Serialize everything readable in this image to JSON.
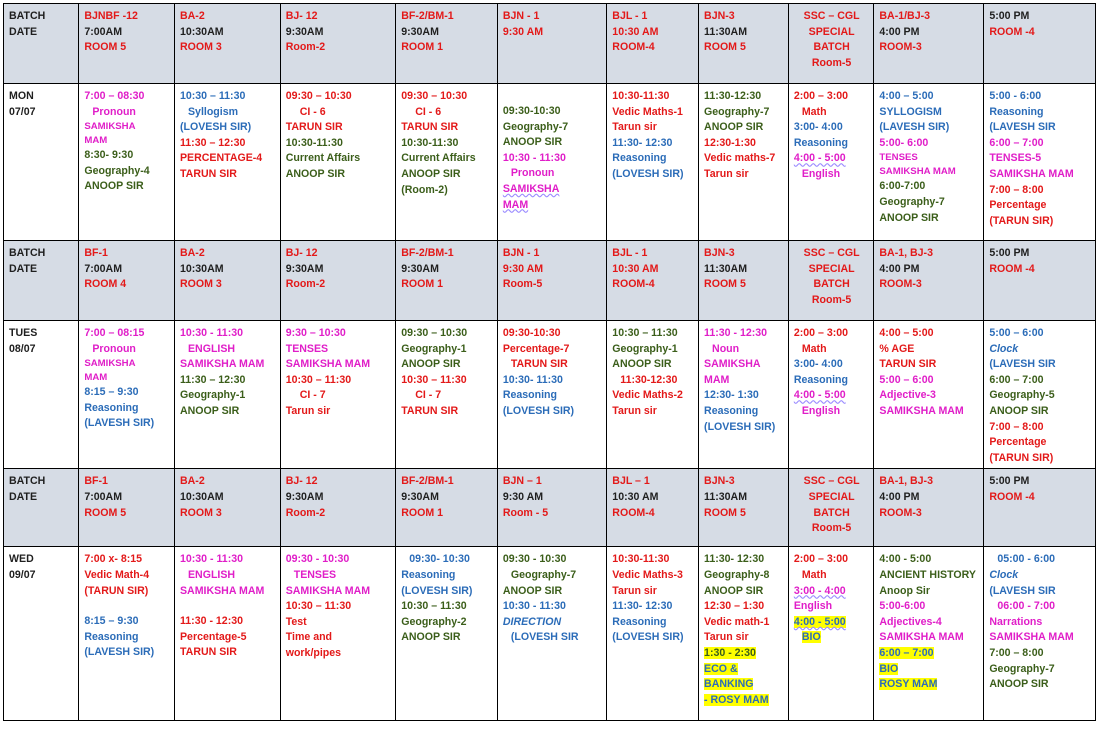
{
  "labels": {
    "batch": "BATCH",
    "date": "DATE",
    "mon": "MON",
    "mon_date": "07/07",
    "tues": "TUES",
    "tues_date": "08/07",
    "wed": "WED",
    "wed_date": "09/07"
  },
  "h1": {
    "c1": [
      "BJNBF -12",
      "7:00AM",
      "ROOM 5"
    ],
    "c2": [
      "BA-2",
      "10:30AM",
      "ROOM 3"
    ],
    "c3": [
      "BJ- 12",
      "9:30AM",
      "Room-2"
    ],
    "c4": [
      "BF-2/BM-1",
      "9:30AM",
      "ROOM 1"
    ],
    "c5": [
      "BJN - 1",
      "9:30 AM"
    ],
    "c6": [
      "BJL - 1",
      "10:30 AM",
      "ROOM-4"
    ],
    "c7": [
      "BJN-3",
      "11:30AM",
      "ROOM 5"
    ],
    "c8": [
      "SSC – CGL",
      "SPECIAL",
      "BATCH",
      "Room-5"
    ],
    "c9": [
      "BA-1/BJ-3",
      "4:00 PM",
      "ROOM-3"
    ],
    "c10": [
      "5:00 PM",
      "ROOM -4"
    ]
  },
  "mon": {
    "c1": [
      "7:00 – 08:30",
      "Pronoun",
      "SAMIKSHA",
      "MAM",
      "8:30- 9:30",
      "Geography-4",
      "ANOOP SIR"
    ],
    "c2": [
      "10:30 – 11:30",
      "Syllogism",
      "(LOVESH SIR)",
      "11:30 – 12:30",
      "PERCENTAGE-4",
      "TARUN SIR"
    ],
    "c3": [
      "09:30 – 10:30",
      "CI - 6",
      "TARUN SIR",
      "10:30-11:30",
      "Current Affairs",
      "ANOOP SIR"
    ],
    "c4": [
      "09:30 – 10:30",
      "CI - 6",
      "TARUN SIR",
      "10:30-11:30",
      "Current Affairs",
      "ANOOP SIR",
      "(Room-2)"
    ],
    "c5": [
      "09:30-10:30",
      "Geography-7",
      "ANOOP SIR",
      "10:30 - 11:30",
      "Pronoun",
      "SAMIKSHA",
      "MAM"
    ],
    "c6": [
      "10:30-11:30",
      "Vedic Maths-1",
      "Tarun sir",
      "11:30- 12:30",
      "Reasoning",
      "(LOVESH SIR)"
    ],
    "c7": [
      "11:30-12:30",
      "Geography-7",
      "ANOOP SIR",
      "12:30-1:30",
      "Vedic maths-7",
      "Tarun sir"
    ],
    "c8": [
      "2:00 – 3:00",
      "Math",
      "3:00- 4:00",
      "Reasoning",
      "4:00 - 5:00",
      "English"
    ],
    "c9": [
      "4:00 – 5:00",
      "SYLLOGISM",
      "(LAVESH SIR)",
      "5:00- 6:00",
      "TENSES",
      "SAMIKSHA MAM",
      "6:00-7:00",
      "Geography-7",
      "ANOOP SIR"
    ],
    "c10": [
      "5:00 - 6:00",
      "Reasoning",
      "(LAVESH SIR",
      "6:00 – 7:00",
      "TENSES-5",
      "SAMIKSHA MAM",
      "7:00 – 8:00",
      "Percentage",
      "(TARUN SIR)"
    ]
  },
  "h2": {
    "c1": [
      "BF-1",
      "7:00AM",
      "ROOM 4"
    ],
    "c2": [
      "BA-2",
      "10:30AM",
      "ROOM 3"
    ],
    "c3": [
      "BJ- 12",
      "9:30AM",
      "Room-2"
    ],
    "c4": [
      "BF-2/BM-1",
      "9:30AM",
      "ROOM 1"
    ],
    "c5": [
      "BJN - 1",
      "9:30 AM",
      "Room-5"
    ],
    "c6": [
      "BJL - 1",
      "10:30 AM",
      "ROOM-4"
    ],
    "c7": [
      "BJN-3",
      "11:30AM",
      "ROOM 5"
    ],
    "c8": [
      "SSC – CGL",
      "SPECIAL",
      "BATCH",
      "Room-5"
    ],
    "c9": [
      "BA-1, BJ-3",
      "4:00 PM",
      "ROOM-3"
    ],
    "c10": [
      "5:00 PM",
      "ROOM -4"
    ]
  },
  "tues": {
    "c1": [
      "7:00 – 08:15",
      "Pronoun",
      "SAMIKSHA",
      "MAM",
      "8:15 – 9:30",
      "Reasoning",
      "(LAVESH SIR)"
    ],
    "c2": [
      "10:30 - 11:30",
      "ENGLISH",
      "SAMIKSHA MAM",
      "11:30 – 12:30",
      "Geography-1",
      "ANOOP SIR"
    ],
    "c3": [
      "9:30 – 10:30",
      "TENSES",
      "SAMIKSHA MAM",
      "10:30 – 11:30",
      "CI - 7",
      "Tarun sir"
    ],
    "c4": [
      "09:30 – 10:30",
      "Geography-1",
      "ANOOP SIR",
      "10:30 – 11:30",
      "CI - 7",
      "TARUN SIR"
    ],
    "c5": [
      "09:30-10:30",
      "Percentage-7",
      "TARUN SIR",
      "10:30- 11:30",
      "Reasoning",
      "(LOVESH SIR)"
    ],
    "c6": [
      "10:30 – 11:30",
      "Geography-1",
      "ANOOP SIR",
      "11:30-12:30",
      "Vedic Maths-2",
      "Tarun sir"
    ],
    "c7": [
      "11:30 - 12:30",
      "Noun",
      "SAMIKSHA",
      "MAM",
      "12:30- 1:30",
      "Reasoning",
      "(LOVESH SIR)"
    ],
    "c8": [
      "2:00 – 3:00",
      "Math",
      "3:00- 4:00",
      "Reasoning",
      "4:00 - 5:00",
      "English"
    ],
    "c9": [
      "4:00 – 5:00",
      "% AGE",
      "TARUN SIR",
      "5:00 – 6:00",
      "Adjective-3",
      "SAMIKSHA MAM"
    ],
    "c10": [
      "5:00 – 6:00",
      "Clock",
      "(LAVESH SIR",
      "6:00 – 7:00",
      "Geography-5",
      "ANOOP SIR",
      "7:00 – 8:00",
      "Percentage",
      "(TARUN SIR)"
    ]
  },
  "h3": {
    "c1": [
      "BF-1",
      "7:00AM",
      "ROOM 5"
    ],
    "c2": [
      "BA-2",
      "10:30AM",
      "ROOM 3"
    ],
    "c3": [
      "BJ- 12",
      "9:30AM",
      "Room-2"
    ],
    "c4": [
      "BF-2/BM-1",
      "9:30AM",
      "ROOM 1"
    ],
    "c5": [
      "BJN – 1",
      "9:30 AM",
      "Room - 5"
    ],
    "c6": [
      "BJL – 1",
      "10:30 AM",
      "ROOM-4"
    ],
    "c7": [
      "BJN-3",
      "11:30AM",
      "ROOM 5"
    ],
    "c8": [
      "SSC – CGL",
      "SPECIAL",
      "BATCH",
      "Room-5"
    ],
    "c9": [
      "BA-1, BJ-3",
      "4:00 PM",
      "ROOM-3"
    ],
    "c10": [
      "5:00 PM",
      "ROOM -4"
    ]
  },
  "wed": {
    "c1": [
      "7:00 x- 8:15",
      "Vedic Math-4",
      "(TARUN SIR)",
      "8:15 – 9:30",
      "Reasoning",
      "(LAVESH SIR)"
    ],
    "c2": [
      "10:30 - 11:30",
      "ENGLISH",
      "SAMIKSHA MAM",
      "11:30 - 12:30",
      "Percentage-5",
      "TARUN SIR"
    ],
    "c3": [
      "09:30 - 10:30",
      "TENSES",
      "SAMIKSHA MAM",
      "10:30 – 11:30",
      "Test",
      "Time and",
      "work/pipes"
    ],
    "c4": [
      "09:30- 10:30",
      "Reasoning",
      "(LOVESH SIR)",
      "10:30 – 11:30",
      "Geography-2",
      "ANOOP SIR"
    ],
    "c5": [
      "09:30 - 10:30",
      "Geography-7",
      "ANOOP SIR",
      "10:30 - 11:30",
      "DIRECTION",
      "(LOVESH SIR"
    ],
    "c6": [
      "10:30-11:30",
      "Vedic Maths-3",
      "Tarun sir",
      "11:30- 12:30",
      "Reasoning",
      "(LOVESH SIR)"
    ],
    "c7": [
      "11:30- 12:30",
      "Geography-8",
      "ANOOP SIR",
      "12:30 – 1:30",
      "Vedic math-1",
      "Tarun sir",
      "1:30 - 2:30",
      "ECO &",
      "BANKING",
      "- ROSY MAM"
    ],
    "c8": [
      "2:00 – 3:00",
      "Math",
      "3:00 - 4:00",
      "English",
      "4:00 - 5:00",
      "BIO"
    ],
    "c9": [
      "4:00 - 5:00",
      "ANCIENT HISTORY",
      "Anoop Sir",
      "5:00-6:00",
      "Adjectives-4",
      "SAMIKSHA MAM",
      "6:00 – 7:00",
      "BIO",
      "ROSY MAM"
    ],
    "c10": [
      "05:00 - 6:00",
      "Clock",
      "(LAVESH SIR",
      "06:00 - 7:00",
      "Narrations",
      "SAMIKSHA MAM",
      "7:00 – 8:00",
      "Geography-7",
      "ANOOP SIR"
    ]
  }
}
